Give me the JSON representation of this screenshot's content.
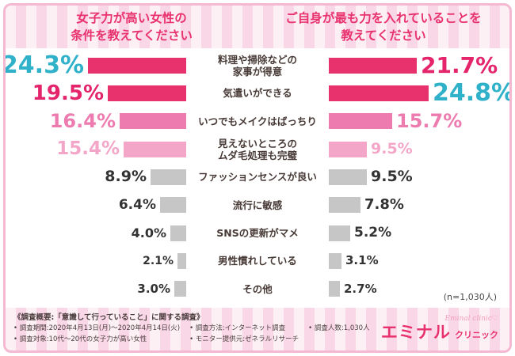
{
  "header": {
    "left_title": "女子力が高い女性の\n条件を教えてください",
    "right_title": "ご自身が最も力を入れていることを\n教えてください"
  },
  "chart_data": {
    "type": "bar",
    "categories": [
      "料理や掃除などの\n家事が得意",
      "気遣いができる",
      "いつでもメイクはばっちり",
      "見えないところの\nムダ毛処理も完璧",
      "ファッションセンスが良い",
      "流行に敏感",
      "SNSの更新がマメ",
      "男性慣れしている",
      "その他"
    ],
    "series": [
      {
        "name": "女子力が高い女性の条件",
        "values": [
          "24.3",
          "19.5",
          "16.4",
          "15.4",
          "8.9",
          "6.4",
          "4.0",
          "2.1",
          "3.0"
        ]
      },
      {
        "name": "ご自身が最も力を入れていること",
        "values": [
          "21.7",
          "24.8",
          "15.7",
          "9.5",
          "9.5",
          "7.8",
          "5.2",
          "3.1",
          "2.7"
        ]
      }
    ],
    "value_suffix": "%",
    "xlim": [
      0,
      25
    ],
    "n_label": "(n=1,030人)",
    "left_value_colors": [
      "#2fb1c9",
      "#e4246b",
      "#ee7bb0",
      "#f3a6c8",
      "#333333",
      "#333333",
      "#333333",
      "#333333",
      "#333333"
    ],
    "right_value_colors": [
      "#e4246b",
      "#2fb1c9",
      "#ee7bb0",
      "#f3a6c8",
      "#333333",
      "#333333",
      "#333333",
      "#333333",
      "#333333"
    ],
    "left_bar_colors": [
      "#e8326e",
      "#e8326e",
      "#ee7bb0",
      "#f3a6c8",
      "#c6c6c6",
      "#c6c6c6",
      "#c6c6c6",
      "#c6c6c6",
      "#c6c6c6"
    ],
    "right_bar_colors": [
      "#e8326e",
      "#e8326e",
      "#ee7bb0",
      "#f3a6c8",
      "#c6c6c6",
      "#c6c6c6",
      "#c6c6c6",
      "#c6c6c6",
      "#c6c6c6"
    ]
  },
  "footer": {
    "survey_title": "《調査概要:「意識して行っていること」に関する調査》",
    "notes": [
      "• 調査期間:2020年4月13日(月)〜2020年4月14日(火)",
      "• 調査対象:10代〜20代の女子力が高い女性",
      "• 調査方法:インターネット調査",
      "• モニター提供元:ゼネラルリサーチ",
      "• 調査人数:1,030人"
    ],
    "logo": {
      "script": "Eminal clinic♡",
      "main": "エミナル",
      "sub": "クリニック"
    }
  },
  "colors": {
    "accent": "#e8326e",
    "highlight_blue": "#2fb1c9",
    "stripe_light": "#fdf0f5",
    "stripe_dark": "#f9d7e6",
    "gray_bar": "#c6c6c6"
  }
}
